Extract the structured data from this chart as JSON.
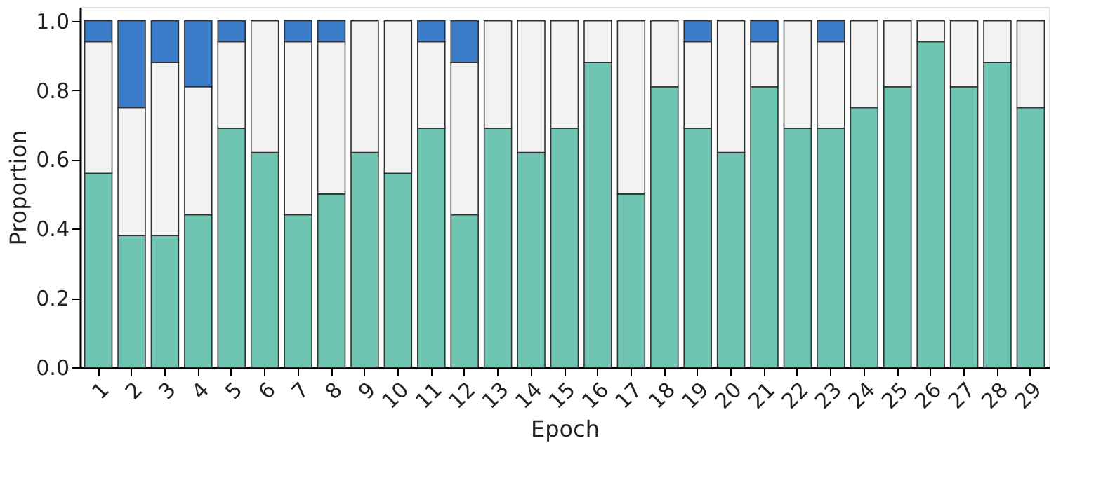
{
  "chart_data": {
    "type": "bar",
    "stacked": true,
    "xlabel": "Epoch",
    "ylabel": "Proportion",
    "categories": [
      "1",
      "2",
      "3",
      "4",
      "5",
      "6",
      "7",
      "8",
      "9",
      "10",
      "11",
      "12",
      "13",
      "14",
      "15",
      "16",
      "17",
      "18",
      "19",
      "20",
      "21",
      "22",
      "23",
      "24",
      "25",
      "26",
      "27",
      "28",
      "29"
    ],
    "series": [
      {
        "color": "#6fc4b2",
        "values": [
          0.56,
          0.38,
          0.38,
          0.44,
          0.69,
          0.62,
          0.44,
          0.5,
          0.62,
          0.56,
          0.69,
          0.44,
          0.69,
          0.62,
          0.69,
          0.88,
          0.5,
          0.81,
          0.69,
          0.62,
          0.81,
          0.69,
          0.69,
          0.75,
          0.81,
          0.94,
          0.81,
          0.88,
          0.75
        ]
      },
      {
        "color": "#f2f2f2",
        "values": [
          0.38,
          0.37,
          0.5,
          0.37,
          0.25,
          0.38,
          0.5,
          0.44,
          0.38,
          0.44,
          0.25,
          0.44,
          0.31,
          0.38,
          0.31,
          0.12,
          0.5,
          0.19,
          0.25,
          0.38,
          0.13,
          0.31,
          0.25,
          0.25,
          0.19,
          0.06,
          0.19,
          0.12,
          0.25
        ]
      },
      {
        "color": "#3a7cc8",
        "values": [
          0.06,
          0.25,
          0.12,
          0.19,
          0.06,
          null,
          0.06,
          0.06,
          null,
          null,
          0.06,
          0.12,
          null,
          null,
          null,
          null,
          null,
          null,
          0.06,
          null,
          0.06,
          null,
          0.06,
          null,
          null,
          null,
          null,
          null,
          null
        ]
      }
    ],
    "ylim": [
      0,
      1.04
    ],
    "yticks": [
      {
        "value": 0,
        "label": "0.0"
      },
      0.2,
      0.4,
      0.6,
      0.8,
      {
        "value": 1,
        "label": "1.0"
      }
    ],
    "grid": false,
    "legend": false
  }
}
